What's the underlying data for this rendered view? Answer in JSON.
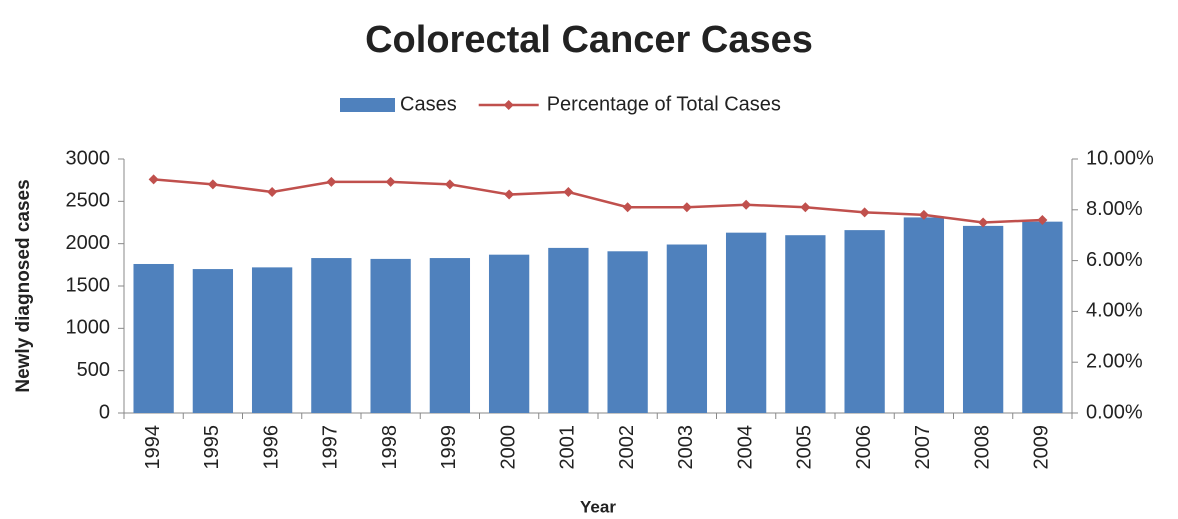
{
  "chart_data": {
    "type": "bar-line",
    "title": "Colorectal Cancer Cases",
    "xlabel": "Year",
    "ylabel": "Newly diagnosed cases",
    "categories": [
      "1994",
      "1995",
      "1996",
      "1997",
      "1998",
      "1999",
      "2000",
      "2001",
      "2002",
      "2003",
      "2004",
      "2005",
      "2006",
      "2007",
      "2008",
      "2009"
    ],
    "series": [
      {
        "name": "Cases",
        "type": "bar",
        "color": "#4f81bd",
        "values": [
          1760,
          1700,
          1720,
          1830,
          1820,
          1830,
          1870,
          1950,
          1910,
          1990,
          2130,
          2100,
          2160,
          2310,
          2210,
          2260
        ]
      },
      {
        "name": "Percentage of Total Cases",
        "type": "line",
        "axis": "y2",
        "color": "#c0504d",
        "values": [
          9.2,
          9.0,
          8.7,
          9.1,
          9.1,
          9.0,
          8.6,
          8.7,
          8.1,
          8.1,
          8.2,
          8.1,
          7.9,
          7.8,
          7.5,
          7.6
        ]
      }
    ],
    "ylim": [
      0,
      3000
    ],
    "yticks": [
      0,
      500,
      1000,
      1500,
      2000,
      2500,
      3000
    ],
    "y2lim": [
      0,
      10
    ],
    "y2ticks": [
      {
        "value": 0,
        "label": "0.00%"
      },
      {
        "value": 2,
        "label": "2.00%"
      },
      {
        "value": 4,
        "label": "4.00%"
      },
      {
        "value": 6,
        "label": "6.00%"
      },
      {
        "value": 8,
        "label": "8.00%"
      },
      {
        "value": 10,
        "label": "10.00%"
      }
    ],
    "legend": "top",
    "grid": false
  }
}
